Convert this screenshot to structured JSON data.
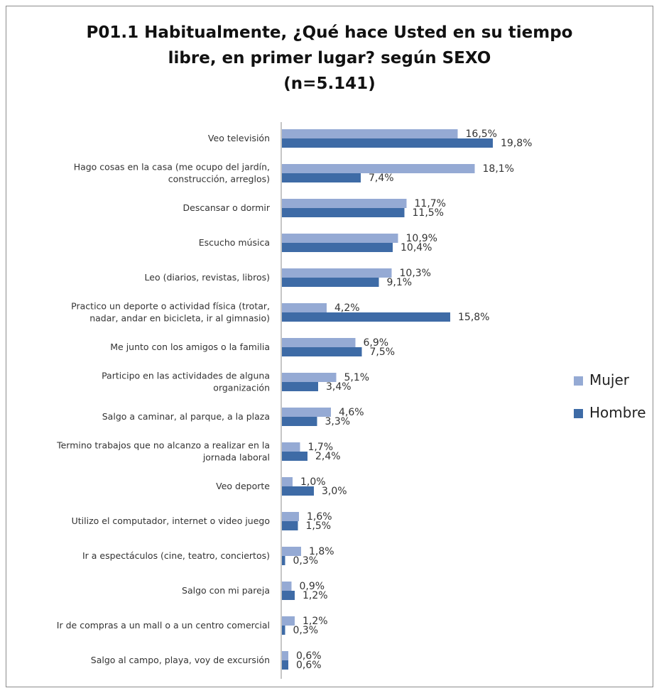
{
  "chart_data": {
    "type": "bar",
    "orientation": "horizontal",
    "title_lines": [
      "P01.1 Habitualmente, ¿Qué hace Usted en su tiempo",
      "libre, en primer lugar? según SEXO",
      "(n=5.141)"
    ],
    "categories": [
      [
        "Veo televisión"
      ],
      [
        "Hago cosas en la casa (me ocupo del jardín,",
        "construcción, arreglos)"
      ],
      [
        "Descansar o dormir"
      ],
      [
        "Escucho música"
      ],
      [
        "Leo (diarios, revistas, libros)"
      ],
      [
        "Practico un deporte o actividad física (trotar,",
        "nadar, andar en bicicleta, ir al gimnasio)"
      ],
      [
        "Me junto con los amigos o la familia"
      ],
      [
        "Participo en las actividades de alguna",
        "organización"
      ],
      [
        "Salgo a caminar, al parque, a la plaza"
      ],
      [
        "Termino trabajos que no alcanzo a realizar en la",
        "jornada laboral"
      ],
      [
        "Veo deporte"
      ],
      [
        "Utilizo el computador, internet o video juego"
      ],
      [
        "Ir a espectáculos (cine, teatro, conciertos)"
      ],
      [
        "Salgo con mi pareja"
      ],
      [
        "Ir de compras a un mall o a un centro comercial"
      ],
      [
        "Salgo al campo, playa, voy de excursión"
      ]
    ],
    "series": [
      {
        "name": "Mujer",
        "color": "#95aad4",
        "values": [
          16.5,
          18.1,
          11.7,
          10.9,
          10.3,
          4.2,
          6.9,
          5.1,
          4.6,
          1.7,
          1.0,
          1.6,
          1.8,
          0.9,
          1.2,
          0.6
        ],
        "labels": [
          "16,5%",
          "18,1%",
          "11,7%",
          "10,9%",
          "10,3%",
          "4,2%",
          "6,9%",
          "5,1%",
          "4,6%",
          "1,7%",
          "1,0%",
          "1,6%",
          "1,8%",
          "0,9%",
          "1,2%",
          "0,6%"
        ]
      },
      {
        "name": "Hombre",
        "color": "#3e6ba6",
        "values": [
          19.8,
          7.4,
          11.5,
          10.4,
          9.1,
          15.8,
          7.5,
          3.4,
          3.3,
          2.4,
          3.0,
          1.5,
          0.3,
          1.2,
          0.3,
          0.6
        ],
        "labels": [
          "19,8%",
          "7,4%",
          "11,5%",
          "10,4%",
          "9,1%",
          "15,8%",
          "7,5%",
          "3,4%",
          "3,3%",
          "2,4%",
          "3,0%",
          "1,5%",
          "0,3%",
          "1,2%",
          "0,3%",
          "0,6%"
        ]
      }
    ],
    "xlim": [
      0,
      20
    ],
    "grid": false,
    "legend_position": "right"
  }
}
